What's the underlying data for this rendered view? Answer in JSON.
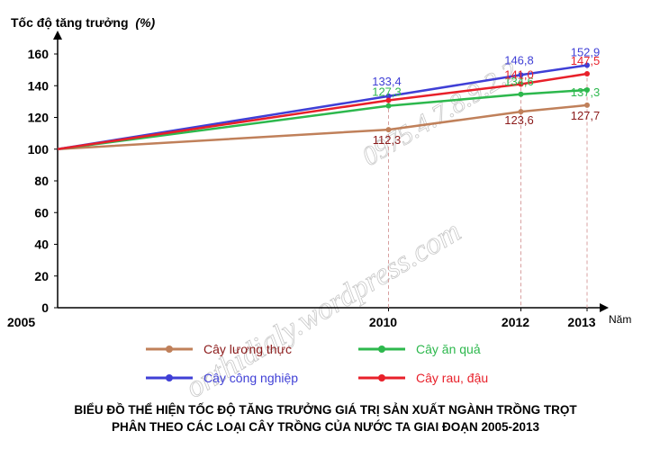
{
  "chart_data": {
    "type": "line",
    "ylabel": "Tốc độ tăng trưởng",
    "ylabel_unit": "(%)",
    "xlabel": "Năm",
    "x": [
      "2005",
      "2010",
      "2012",
      "2013"
    ],
    "x_values": [
      2005,
      2010,
      2012,
      2013
    ],
    "ylim": [
      0,
      160
    ],
    "yticks": [
      0,
      20,
      40,
      60,
      80,
      100,
      120,
      140,
      160
    ],
    "grid": false,
    "legend_position": "bottom",
    "series": [
      {
        "name": "Cây lương thực",
        "color": "#c0805a",
        "label_color": "#8b1a1a",
        "values": [
          100,
          112.3,
          123.6,
          127.7
        ],
        "labels": [
          "",
          "112,3",
          "123,6",
          "127,7"
        ]
      },
      {
        "name": "Cây ăn quả",
        "color": "#2db84d",
        "label_color": "#2db84d",
        "values": [
          100,
          127.3,
          134.6,
          137.3
        ],
        "labels": [
          "",
          "127,3",
          "134,6",
          "137,3"
        ]
      },
      {
        "name": "Cây công nghiệp",
        "color": "#3f3fd6",
        "label_color": "#3f3fd6",
        "values": [
          100,
          133.4,
          146.8,
          152.9
        ],
        "labels": [
          "",
          "133,4",
          "146,8",
          "152,9"
        ]
      },
      {
        "name": "Cây rau, đậu",
        "color": "#e8202a",
        "label_color": "#e8202a",
        "values": [
          100,
          130.8,
          141.0,
          147.5
        ],
        "labels": [
          "",
          "",
          "141,0",
          "147,5"
        ]
      }
    ],
    "title_line1": "BIỂU ĐỒ THỂ HIỆN TỐC ĐỘ TĂNG TRƯỞNG GIÁ TRỊ SẢN XUẤT NGÀNH TRỒNG TRỌT",
    "title_line2": "PHÂN THEO CÁC LOẠI CÂY TRỒNG CỦA NƯỚC TA GIAI ĐOẠN 2005-2013"
  },
  "watermark": {
    "text1": "onthidialy.wordpress.com",
    "text2": "0975.4.7.8.9.2.2"
  }
}
